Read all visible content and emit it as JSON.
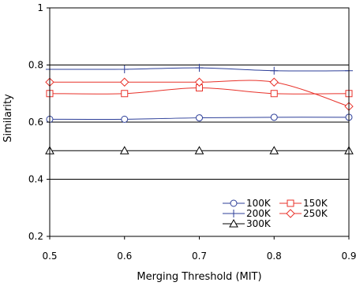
{
  "chart_data": {
    "type": "line",
    "title": "",
    "xlabel": "Merging Threshold (MIT)",
    "ylabel": "Similarity",
    "x": [
      0.5,
      0.6,
      0.7,
      0.8,
      0.9
    ],
    "xlim": [
      0.5,
      0.9
    ],
    "ylim": [
      0.2,
      1.0
    ],
    "x_ticks": [
      "0.5",
      "0.6",
      "0.7",
      "0.8",
      "0.9"
    ],
    "y_ticks": [
      "0.2",
      "0.4",
      "0.6",
      "0.8",
      "1"
    ],
    "grid": "horizontal",
    "legend_position": "bottom-right",
    "series": [
      {
        "name": "100K",
        "marker": "circle",
        "color": "#2d3f99",
        "values": [
          0.61,
          0.61,
          0.615,
          0.617,
          0.617
        ]
      },
      {
        "name": "150K",
        "marker": "square",
        "color": "#e8322a",
        "values": [
          0.7,
          0.7,
          0.72,
          0.7,
          0.7
        ]
      },
      {
        "name": "200K",
        "marker": "plus",
        "color": "#2d3f99",
        "values": [
          0.785,
          0.785,
          0.79,
          0.78,
          0.78
        ]
      },
      {
        "name": "250K",
        "marker": "diamond",
        "color": "#e8322a",
        "values": [
          0.74,
          0.74,
          0.74,
          0.74,
          0.655
        ]
      },
      {
        "name": "300K",
        "marker": "triangle",
        "color": "#000000",
        "values": [
          0.5,
          0.5,
          0.5,
          0.5,
          0.5
        ]
      }
    ]
  }
}
